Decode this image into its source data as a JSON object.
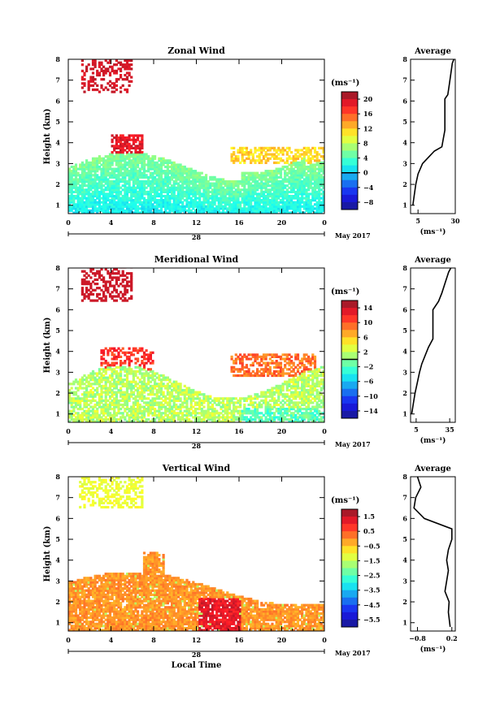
{
  "chart_data": [
    {
      "type": "heatmap",
      "title": "Zonal Wind",
      "ylabel": "Height (km)",
      "xlim": [
        0,
        24
      ],
      "ylim": [
        0.6,
        8
      ],
      "xticks": [
        "0",
        "4",
        "8",
        "12",
        "16",
        "20",
        "0"
      ],
      "yticks": [
        "1",
        "2",
        "3",
        "4",
        "5",
        "6",
        "7",
        "8"
      ],
      "date_label": "28",
      "month_label": "May 2017",
      "colorbar": {
        "unit": "(ms⁻¹)",
        "ticks": [
          "20",
          "16",
          "12",
          "8",
          "4",
          "0",
          "−4",
          "−8"
        ],
        "range": [
          -10,
          22
        ],
        "zero_line": 0
      },
      "average": {
        "title": "Average",
        "xlabel": "(ms⁻¹)",
        "xticks": [
          "5",
          "30"
        ],
        "xlim": [
          0,
          30
        ],
        "profile": [
          [
            1.0,
            1.5
          ],
          [
            1.5,
            2.5
          ],
          [
            2.0,
            3.5
          ],
          [
            2.5,
            5.0
          ],
          [
            3.0,
            8.0
          ],
          [
            3.3,
            12.0
          ],
          [
            3.6,
            16.0
          ],
          [
            3.8,
            21.0
          ],
          [
            4.2,
            22.0
          ],
          [
            4.6,
            23.0
          ],
          [
            6.1,
            23.0
          ],
          [
            6.3,
            25.0
          ],
          [
            6.8,
            26.0
          ],
          [
            7.3,
            27.0
          ],
          [
            7.8,
            28.0
          ],
          [
            8.0,
            29.0
          ]
        ]
      }
    },
    {
      "type": "heatmap",
      "title": "Meridional Wind",
      "ylabel": "Height (km)",
      "xlim": [
        0,
        24
      ],
      "ylim": [
        0.6,
        8
      ],
      "xticks": [
        "0",
        "4",
        "8",
        "12",
        "16",
        "20",
        "0"
      ],
      "yticks": [
        "1",
        "2",
        "3",
        "4",
        "5",
        "6",
        "7",
        "8"
      ],
      "date_label": "28",
      "month_label": "May 2017",
      "colorbar": {
        "unit": "(ms⁻¹)",
        "ticks": [
          "14",
          "10",
          "6",
          "2",
          "−2",
          "−6",
          "−10",
          "−14"
        ],
        "range": [
          -16,
          16
        ],
        "zero_line": 0
      },
      "average": {
        "title": "Average",
        "xlabel": "(ms⁻¹)",
        "xticks": [
          "5",
          "35"
        ],
        "xlim": [
          0,
          40
        ],
        "profile": [
          [
            1.0,
            1.0
          ],
          [
            1.5,
            2.5
          ],
          [
            2.0,
            4.0
          ],
          [
            2.5,
            6.0
          ],
          [
            3.0,
            8.0
          ],
          [
            3.4,
            10.0
          ],
          [
            3.8,
            13.0
          ],
          [
            4.2,
            16.0
          ],
          [
            4.6,
            20.0
          ],
          [
            6.0,
            20.0
          ],
          [
            6.4,
            25.0
          ],
          [
            6.8,
            28.0
          ],
          [
            7.3,
            31.0
          ],
          [
            7.8,
            34.0
          ],
          [
            8.0,
            36.0
          ]
        ]
      }
    },
    {
      "type": "heatmap",
      "title": "Vertical Wind",
      "ylabel": "Height (km)",
      "xlabel": "Local Time",
      "xlim": [
        0,
        24
      ],
      "ylim": [
        0.6,
        8
      ],
      "xticks": [
        "0",
        "4",
        "8",
        "12",
        "16",
        "20",
        "0"
      ],
      "yticks": [
        "1",
        "2",
        "3",
        "4",
        "5",
        "6",
        "7",
        "8"
      ],
      "date_label": "28",
      "month_label": "May 2017",
      "colorbar": {
        "unit": "(ms⁻¹)",
        "ticks": [
          "1.5",
          "0.5",
          "−0.5",
          "−1.5",
          "−2.5",
          "−3.5",
          "−4.5",
          "−5.5"
        ],
        "range": [
          -6,
          2
        ]
      },
      "average": {
        "title": "Average",
        "xlabel": "(ms⁻¹)",
        "xticks": [
          "−0.8",
          "0.2"
        ],
        "xlim": [
          -1.0,
          0.3
        ],
        "profile": [
          [
            0.8,
            0.15
          ],
          [
            1.5,
            0.1
          ],
          [
            2.0,
            0.12
          ],
          [
            2.5,
            0.0
          ],
          [
            3.0,
            0.05
          ],
          [
            3.5,
            0.1
          ],
          [
            4.0,
            0.05
          ],
          [
            4.5,
            0.1
          ],
          [
            5.0,
            0.2
          ],
          [
            5.5,
            0.2
          ],
          [
            6.0,
            -0.6
          ],
          [
            6.5,
            -0.9
          ],
          [
            7.0,
            -0.85
          ],
          [
            7.5,
            -0.7
          ],
          [
            8.0,
            -0.8
          ]
        ]
      }
    }
  ]
}
